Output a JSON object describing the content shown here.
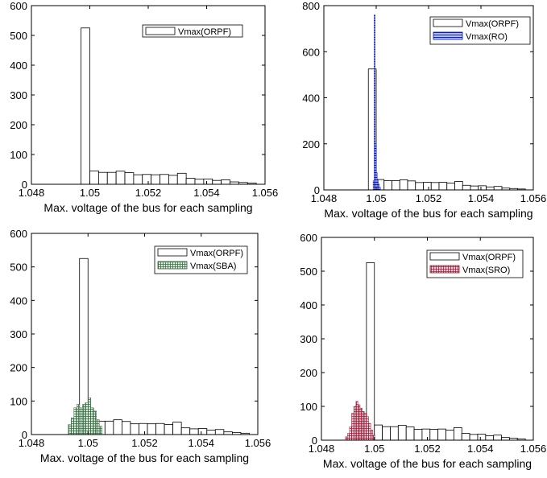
{
  "chart_data": [
    {
      "type": "bar",
      "subtype": "histogram",
      "xlabel": "Max. voltage of the bus for each sampling",
      "ylabel": "",
      "xlim": [
        1.048,
        1.056
      ],
      "ylim": [
        0,
        600
      ],
      "xticks": [
        "1.048",
        "1.05",
        "1.052",
        "1.054",
        "1.056"
      ],
      "yticks": [
        "0",
        "100",
        "200",
        "300",
        "400",
        "500",
        "600"
      ],
      "legend_position": "top-right",
      "series": [
        {
          "name": "Vmax(ORPF)",
          "color": "#ffffff",
          "bin_start": 1.0497,
          "bin_width": 0.0003,
          "values": [
            525,
            45,
            40,
            40,
            44,
            39,
            32,
            33,
            32,
            33,
            30,
            37,
            20,
            17,
            18,
            13,
            15,
            8,
            6,
            4
          ]
        }
      ]
    },
    {
      "type": "bar",
      "subtype": "histogram",
      "xlabel": "Max. voltage of the bus for each sampling",
      "ylabel": "",
      "xlim": [
        1.048,
        1.056
      ],
      "ylim": [
        0,
        800
      ],
      "xticks": [
        "1.048",
        "1.05",
        "1.052",
        "1.054",
        "1.056"
      ],
      "yticks": [
        "0",
        "200",
        "400",
        "600",
        "800"
      ],
      "legend_position": "top-right",
      "series": [
        {
          "name": "Vmax(ORPF)",
          "color": "#ffffff",
          "bin_start": 1.0497,
          "bin_width": 0.0003,
          "values": [
            525,
            45,
            40,
            40,
            44,
            39,
            32,
            33,
            32,
            33,
            30,
            37,
            20,
            17,
            18,
            13,
            15,
            8,
            6,
            4
          ]
        },
        {
          "name": "Vmax(RO)",
          "color": "#1a2ccc",
          "bin_start": 1.04988,
          "bin_width": 4e-05,
          "values": [
            40,
            760,
            200,
            75,
            45,
            25,
            12
          ]
        }
      ]
    },
    {
      "type": "bar",
      "subtype": "histogram",
      "xlabel": "Max. voltage of the bus for each sampling",
      "ylabel": "",
      "xlim": [
        1.048,
        1.056
      ],
      "ylim": [
        0,
        600
      ],
      "xticks": [
        "1.048",
        "1.05",
        "1.052",
        "1.054",
        "1.056"
      ],
      "yticks": [
        "0",
        "100",
        "200",
        "300",
        "400",
        "500",
        "600"
      ],
      "legend_position": "top-right",
      "series": [
        {
          "name": "Vmax(ORPF)",
          "color": "#ffffff",
          "bin_start": 1.0497,
          "bin_width": 0.0003,
          "values": [
            525,
            45,
            40,
            40,
            44,
            39,
            32,
            33,
            32,
            33,
            30,
            37,
            20,
            17,
            18,
            13,
            15,
            8,
            6,
            4
          ]
        },
        {
          "name": "Vmax(SBA)",
          "color": "#8fbf9f",
          "bin_start": 1.0493,
          "bin_width": 0.0001,
          "values": [
            30,
            50,
            80,
            90,
            80,
            90,
            95,
            110,
            80,
            70,
            45,
            25
          ]
        }
      ]
    },
    {
      "type": "bar",
      "subtype": "histogram",
      "xlabel": "Max. voltage of the bus for each sampling",
      "ylabel": "",
      "xlim": [
        1.048,
        1.056
      ],
      "ylim": [
        0,
        600
      ],
      "xticks": [
        "1.048",
        "1.05",
        "1.052",
        "1.054",
        "1.056"
      ],
      "yticks": [
        "0",
        "100",
        "200",
        "300",
        "400",
        "500",
        "600"
      ],
      "legend_position": "top-right",
      "series": [
        {
          "name": "Vmax(ORPF)",
          "color": "#ffffff",
          "bin_start": 1.0497,
          "bin_width": 0.0003,
          "values": [
            525,
            45,
            40,
            40,
            44,
            39,
            32,
            33,
            32,
            33,
            30,
            37,
            20,
            17,
            18,
            13,
            15,
            8,
            6,
            4
          ]
        },
        {
          "name": "Vmax(SRO)",
          "color": "#c0506a",
          "bin_start": 1.0489,
          "bin_width": 8e-05,
          "values": [
            10,
            20,
            40,
            80,
            100,
            115,
            105,
            95,
            85,
            80,
            70,
            50,
            30,
            15
          ]
        }
      ]
    }
  ]
}
